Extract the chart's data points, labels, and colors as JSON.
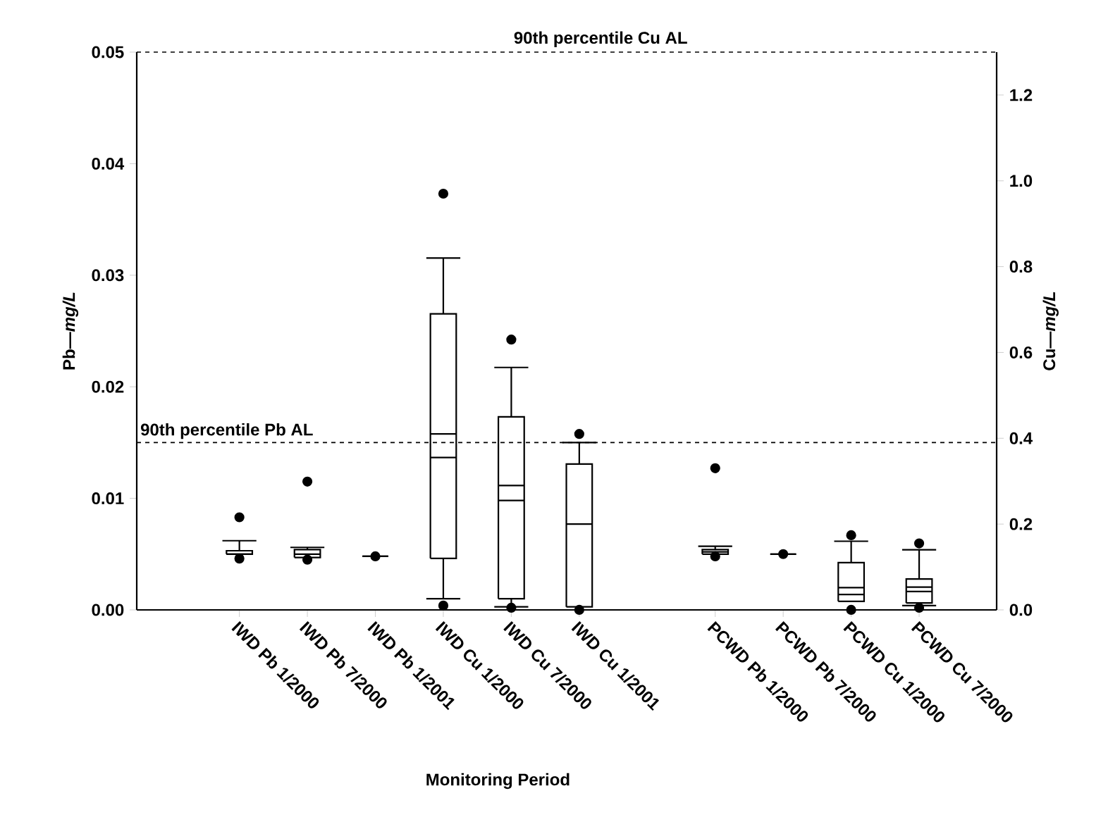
{
  "chart_data": {
    "type": "box",
    "xlabel": "Monitoring Period",
    "ylabel": "Pb—*mg/L*",
    "y2label": "Cu—*mg/L*",
    "categories": [
      "IWD Pb 1/2000",
      "IWD Pb 7/2000",
      "IWD Pb 1/2001",
      "IWD Cu 1/2000",
      "IWD Cu 7/2000",
      "IWD Cu 1/2001",
      null,
      "PCWD Pb 1/2000",
      "PCWD Pb 7/2000",
      "PCWD Cu 1/2000",
      "PCWD Cu 7/2000"
    ],
    "ylim": [
      0,
      0.05
    ],
    "yticks": [
      {
        "value": 0,
        "label": "0.00"
      },
      {
        "value": 0.01,
        "label": "0.01"
      },
      {
        "value": 0.02,
        "label": "0.02"
      },
      {
        "value": 0.03,
        "label": "0.03"
      },
      {
        "value": 0.04,
        "label": "0.04"
      },
      {
        "value": 0.05,
        "label": "0.05"
      }
    ],
    "y2lim": [
      0,
      1.3
    ],
    "y2ticks": [
      {
        "value": 0,
        "label": "0.0"
      },
      {
        "value": 0.2,
        "label": "0.2"
      },
      {
        "value": 0.4,
        "label": "0.4"
      },
      {
        "value": 0.6,
        "label": "0.6"
      },
      {
        "value": 0.8,
        "label": "0.8"
      },
      {
        "value": 1.0,
        "label": "1.0"
      },
      {
        "value": 1.2,
        "label": "1.2"
      }
    ],
    "series": [
      {
        "color": "#000000",
        "boxes": [
          {
            "low": 0.005,
            "q1": 0.005,
            "median": 0.005,
            "q3": 0.0053,
            "high": 0.0062,
            "outliers": [
              0.0083,
              0.0046
            ]
          },
          {
            "low": 0.0047,
            "q1": 0.0047,
            "median": 0.005,
            "q3": 0.0054,
            "high": 0.0056,
            "outliers": [
              0.0115,
              0.0045
            ]
          },
          {
            "low": 0.0048,
            "q1": 0.0048,
            "median": 0.0048,
            "q3": 0.0048,
            "high": 0.0048,
            "outliers": [
              0.0048
            ]
          },
          null,
          null,
          null,
          null,
          {
            "low": 0.005,
            "q1": 0.005,
            "median": 0.0052,
            "q3": 0.0054,
            "high": 0.0057,
            "outliers": [
              0.0127,
              0.0048
            ]
          },
          {
            "low": 0.005,
            "q1": 0.005,
            "median": 0.005,
            "q3": 0.005,
            "high": 0.005,
            "outliers": [
              0.005
            ]
          },
          null,
          null
        ]
      },
      {
        "color": "#000000",
        "axis": "y2",
        "boxes": [
          null,
          null,
          null,
          {
            "low": 0.026,
            "q1": 0.12,
            "median": 0.355,
            "mean": 0.41,
            "q3": 0.69,
            "high": 0.82,
            "outliers": [
              0.97,
              0.01
            ]
          },
          {
            "low": 0.007,
            "q1": 0.026,
            "median": 0.255,
            "mean": 0.29,
            "q3": 0.45,
            "high": 0.565,
            "outliers": [
              0.63,
              0.005
            ]
          },
          {
            "low": 0.007,
            "q1": 0.007,
            "median": 0.2,
            "q3": 0.34,
            "high": 0.39,
            "outliers": [
              0.41,
              0.0
            ]
          },
          null,
          null,
          null,
          {
            "low": 0.02,
            "q1": 0.02,
            "median": 0.036,
            "mean": 0.052,
            "q3": 0.11,
            "high": 0.16,
            "outliers": [
              0.174,
              0.0
            ]
          },
          {
            "low": 0.01,
            "q1": 0.016,
            "median": 0.043,
            "mean": 0.053,
            "q3": 0.072,
            "high": 0.14,
            "outliers": [
              0.155,
              0.005
            ]
          }
        ]
      }
    ],
    "ref_lines": [
      {
        "axis": "y",
        "value": 0.015,
        "label": "90th percentile Pb AL",
        "line_style": "dashed"
      },
      {
        "axis": "y2",
        "value": 1.3,
        "label": "90th percentile Cu AL",
        "line_style": "dashed"
      }
    ]
  }
}
